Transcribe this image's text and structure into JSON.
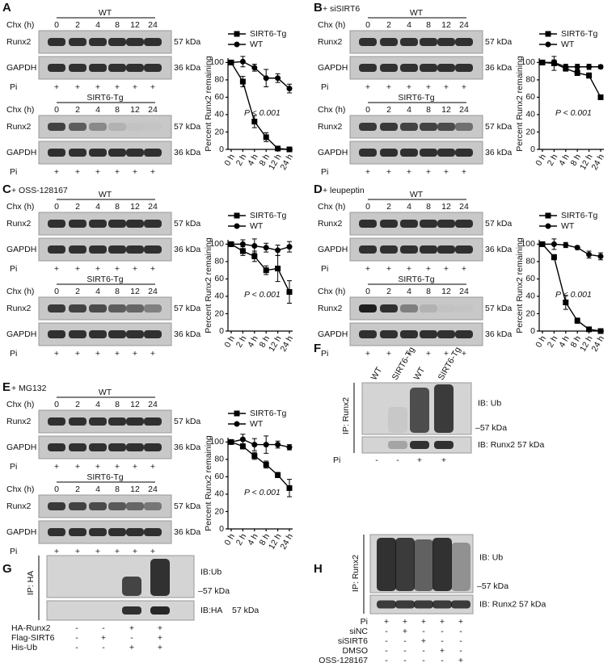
{
  "chart_data": [
    {
      "type": "line",
      "ylabel": "Percent Runx2 remaining",
      "categories": [
        "0 h",
        "2 h",
        "4 h",
        "8 h",
        "12 h",
        "24 h"
      ],
      "series": [
        {
          "name": "SIRT6-Tg",
          "color": "#000000",
          "marker": "square",
          "values": [
            100,
            78,
            32,
            14,
            1,
            0
          ],
          "errors": [
            0,
            6,
            7,
            5,
            1,
            0
          ]
        },
        {
          "name": "WT",
          "color": "#000000",
          "marker": "circle",
          "values": [
            100,
            101,
            94,
            82,
            82,
            70
          ],
          "errors": [
            0,
            6,
            4,
            10,
            5,
            5
          ]
        }
      ],
      "ylim": [
        0,
        105
      ],
      "yticks": [
        0,
        20,
        40,
        60,
        80,
        100
      ],
      "annotation": "P < 0.001"
    },
    {
      "type": "line",
      "ylabel": "Percent Runx2 remaining",
      "categories": [
        "0 h",
        "2 h",
        "4 h",
        "8 h",
        "12 h",
        "24 h"
      ],
      "series": [
        {
          "name": "SIRT6-Tg",
          "color": "#000000",
          "marker": "square",
          "values": [
            100,
            99,
            93,
            88,
            85,
            60
          ],
          "errors": [
            0,
            8,
            3,
            3,
            3,
            2
          ]
        },
        {
          "name": "WT",
          "color": "#000000",
          "marker": "circle",
          "values": [
            100,
            100,
            95,
            95,
            95,
            95
          ],
          "errors": [
            0,
            3,
            3,
            3,
            3,
            2
          ]
        }
      ],
      "ylim": [
        0,
        105
      ],
      "yticks": [
        0,
        20,
        40,
        60,
        80,
        100
      ],
      "annotation": "P < 0.001"
    },
    {
      "type": "line",
      "ylabel": "Percent Runx2 remaining",
      "categories": [
        "0 h",
        "2 h",
        "4 h",
        "8 h",
        "12 h",
        "24 h"
      ],
      "series": [
        {
          "name": "SIRT6-Tg",
          "color": "#000000",
          "marker": "square",
          "values": [
            100,
            92,
            86,
            70,
            72,
            45
          ],
          "errors": [
            0,
            5,
            6,
            5,
            15,
            13
          ]
        },
        {
          "name": "WT",
          "color": "#000000",
          "marker": "circle",
          "values": [
            100,
            100,
            98,
            96,
            93,
            97
          ],
          "errors": [
            0,
            5,
            8,
            5,
            6,
            6
          ]
        }
      ],
      "ylim": [
        0,
        105
      ],
      "yticks": [
        0,
        20,
        40,
        60,
        80,
        100
      ],
      "annotation": "P < 0.001"
    },
    {
      "type": "line",
      "ylabel": "Percent Runx2 remaining",
      "categories": [
        "0 h",
        "2 h",
        "4 h",
        "8 h",
        "12 h",
        "24 h"
      ],
      "series": [
        {
          "name": "SIRT6-Tg",
          "color": "#000000",
          "marker": "square",
          "values": [
            100,
            85,
            33,
            12,
            2,
            0
          ],
          "errors": [
            0,
            3,
            8,
            3,
            1,
            0
          ]
        },
        {
          "name": "WT",
          "color": "#000000",
          "marker": "circle",
          "values": [
            100,
            100,
            99,
            96,
            88,
            86
          ],
          "errors": [
            0,
            6,
            3,
            2,
            4,
            4
          ]
        }
      ],
      "ylim": [
        0,
        105
      ],
      "yticks": [
        0,
        20,
        40,
        60,
        80,
        100
      ],
      "annotation": "P < 0.001"
    },
    {
      "type": "line",
      "ylabel": "Percent Runx2 remaining",
      "categories": [
        "0 h",
        "2 h",
        "4 h",
        "8 h",
        "12 h",
        "24 h"
      ],
      "series": [
        {
          "name": "SIRT6-Tg",
          "color": "#000000",
          "marker": "square",
          "values": [
            100,
            95,
            84,
            74,
            62,
            47
          ],
          "errors": [
            0,
            3,
            4,
            4,
            3,
            10
          ]
        },
        {
          "name": "WT",
          "color": "#000000",
          "marker": "circle",
          "values": [
            100,
            103,
            97,
            97,
            97,
            94
          ],
          "errors": [
            0,
            6,
            7,
            10,
            4,
            3
          ]
        }
      ],
      "ylim": [
        0,
        105
      ],
      "yticks": [
        0,
        20,
        40,
        60,
        80,
        100
      ],
      "annotation": "P < 0.001"
    }
  ],
  "panels": [
    {
      "letter": "A",
      "groups": [
        {
          "title": "WT",
          "chx": "Chx (h)",
          "times": [
            "0",
            "2",
            "4",
            "8",
            "12",
            "24"
          ],
          "rows": [
            {
              "label": "Runx2",
              "kda": "57 kDa"
            },
            {
              "label": "GAPDH",
              "kda": "36 kDa"
            }
          ],
          "pi": "Pi",
          "pi_signs": [
            "+",
            "+",
            "+",
            "+",
            "+",
            "+"
          ]
        },
        {
          "title": "SIRT6-Tg",
          "chx": "Chx (h)",
          "times": [
            "0",
            "2",
            "4",
            "8",
            "12",
            "24"
          ],
          "rows": [
            {
              "label": "Runx2",
              "kda": "57 kDa"
            },
            {
              "label": "GAPDH",
              "kda": "36 kDa"
            }
          ],
          "pi": "Pi",
          "pi_signs": [
            "+",
            "+",
            "+",
            "+",
            "+",
            "+"
          ]
        }
      ]
    },
    {
      "letter": "B",
      "treatment": "+ siSIRT6",
      "groups": [
        {
          "title": "WT",
          "chx": "Chx (h)",
          "times": [
            "0",
            "2",
            "4",
            "8",
            "12",
            "24"
          ],
          "rows": [
            {
              "label": "Runx2",
              "kda": "57 kDa"
            },
            {
              "label": "GAPDH",
              "kda": "36 kDa"
            }
          ],
          "pi": "Pi",
          "pi_signs": [
            "+",
            "+",
            "+",
            "+",
            "+",
            "+"
          ]
        },
        {
          "title": "SIRT6-Tg",
          "chx": "Chx (h)",
          "times": [
            "0",
            "2",
            "4",
            "8",
            "12",
            "24"
          ],
          "rows": [
            {
              "label": "Runx2",
              "kda": "57 kDa"
            },
            {
              "label": "GAPDH",
              "kda": "36 kDa"
            }
          ],
          "pi": "Pi",
          "pi_signs": [
            "+",
            "+",
            "+",
            "+",
            "+",
            "+"
          ]
        }
      ]
    },
    {
      "letter": "C",
      "treatment": "+ OSS-128167",
      "groups": [
        {
          "title": "WT",
          "chx": "Chx (h)",
          "times": [
            "0",
            "2",
            "4",
            "8",
            "12",
            "24"
          ],
          "rows": [
            {
              "label": "Runx2",
              "kda": "57 kDa"
            },
            {
              "label": "GAPDH",
              "kda": "36 kDa"
            }
          ],
          "pi": "Pi",
          "pi_signs": [
            "+",
            "+",
            "+",
            "+",
            "+",
            "+"
          ]
        },
        {
          "title": "SIRT6-Tg",
          "chx": "Chx (h)",
          "times": [
            "0",
            "2",
            "4",
            "8",
            "12",
            "24"
          ],
          "rows": [
            {
              "label": "Runx2",
              "kda": "57 kDa"
            },
            {
              "label": "GAPDH",
              "kda": "36 kDa"
            }
          ],
          "pi": "Pi",
          "pi_signs": [
            "+",
            "+",
            "+",
            "+",
            "+",
            "+"
          ]
        }
      ]
    },
    {
      "letter": "D",
      "treatment": "+ leupeptin",
      "groups": [
        {
          "title": "WT",
          "chx": "Chx (h)",
          "times": [
            "0",
            "2",
            "4",
            "8",
            "12",
            "24"
          ],
          "rows": [
            {
              "label": "Runx2",
              "kda": "57 kDa"
            },
            {
              "label": "GAPDH",
              "kda": "36 kDa"
            }
          ],
          "pi": "Pi",
          "pi_signs": [
            "+",
            "+",
            "+",
            "+",
            "+",
            "+"
          ]
        },
        {
          "title": "SIRT6-Tg",
          "chx": "Chx (h)",
          "times": [
            "0",
            "2",
            "4",
            "8",
            "12",
            "24"
          ],
          "rows": [
            {
              "label": "Runx2",
              "kda": "57 kDa"
            },
            {
              "label": "GAPDH",
              "kda": "36 kDa"
            }
          ],
          "pi": "Pi",
          "pi_signs": [
            "+",
            "+",
            "+",
            "+",
            "+",
            "+"
          ]
        }
      ]
    },
    {
      "letter": "E",
      "treatment": "+ MG132",
      "groups": [
        {
          "title": "WT",
          "chx": "Chx (h)",
          "times": [
            "0",
            "2",
            "4",
            "8",
            "12",
            "24"
          ],
          "rows": [
            {
              "label": "Runx2",
              "kda": "57 kDa"
            },
            {
              "label": "GAPDH",
              "kda": "36 kDa"
            }
          ],
          "pi": "Pi",
          "pi_signs": [
            "+",
            "+",
            "+",
            "+",
            "+",
            "+"
          ]
        },
        {
          "title": "SIRT6-Tg",
          "chx": "Chx (h)",
          "times": [
            "0",
            "2",
            "4",
            "8",
            "12",
            "24"
          ],
          "rows": [
            {
              "label": "Runx2",
              "kda": "57 kDa"
            },
            {
              "label": "GAPDH",
              "kda": "36 kDa"
            }
          ],
          "pi": "Pi",
          "pi_signs": [
            "+",
            "+",
            "+",
            "+",
            "+",
            "+"
          ]
        }
      ]
    },
    {
      "letter": "F",
      "lanes": [
        "WT",
        "SIRT6-Tg",
        "WT",
        "SIRT6-Tg"
      ],
      "ip": "IP: Runx2",
      "ib_top": "IB: Ub",
      "marker": "–57 kDa",
      "ib_bottom": "IB: Runx2 57 kDa",
      "conditions": [
        {
          "label": "Pi",
          "signs": [
            "-",
            "-",
            "+",
            "+"
          ]
        }
      ]
    },
    {
      "letter": "G",
      "ip": "IP: HA",
      "ib_top": "IB:Ub",
      "marker": "–57 kDa",
      "ib_bottom": "IB:HA",
      "ib_bottom_kda": "57 kDa",
      "conditions": [
        {
          "label": "HA-Runx2",
          "signs": [
            "-",
            "-",
            "+",
            "+"
          ]
        },
        {
          "label": "Flag-SIRT6",
          "signs": [
            "-",
            "+",
            "-",
            "+"
          ]
        },
        {
          "label": "His-Ub",
          "signs": [
            "-",
            "-",
            "+",
            "+"
          ]
        }
      ]
    },
    {
      "letter": "H",
      "ip": "IP: Runx2",
      "ib_top": "IB: Ub",
      "marker": "–57 kDa",
      "ib_bottom": "IB: Runx2 57 kDa",
      "conditions": [
        {
          "label": "Pi",
          "signs": [
            "+",
            "+",
            "+",
            "+",
            "+"
          ]
        },
        {
          "label": "siNC",
          "signs": [
            "-",
            "+",
            "-",
            "-",
            "-"
          ]
        },
        {
          "label": "siSIRT6",
          "signs": [
            "-",
            "-",
            "+",
            "-",
            "-"
          ]
        },
        {
          "label": "DMSO",
          "signs": [
            "-",
            "-",
            "-",
            "+",
            "-"
          ]
        },
        {
          "label": "OSS-128167",
          "signs": [
            "-",
            "-",
            "-",
            "-",
            "+"
          ]
        }
      ]
    }
  ]
}
